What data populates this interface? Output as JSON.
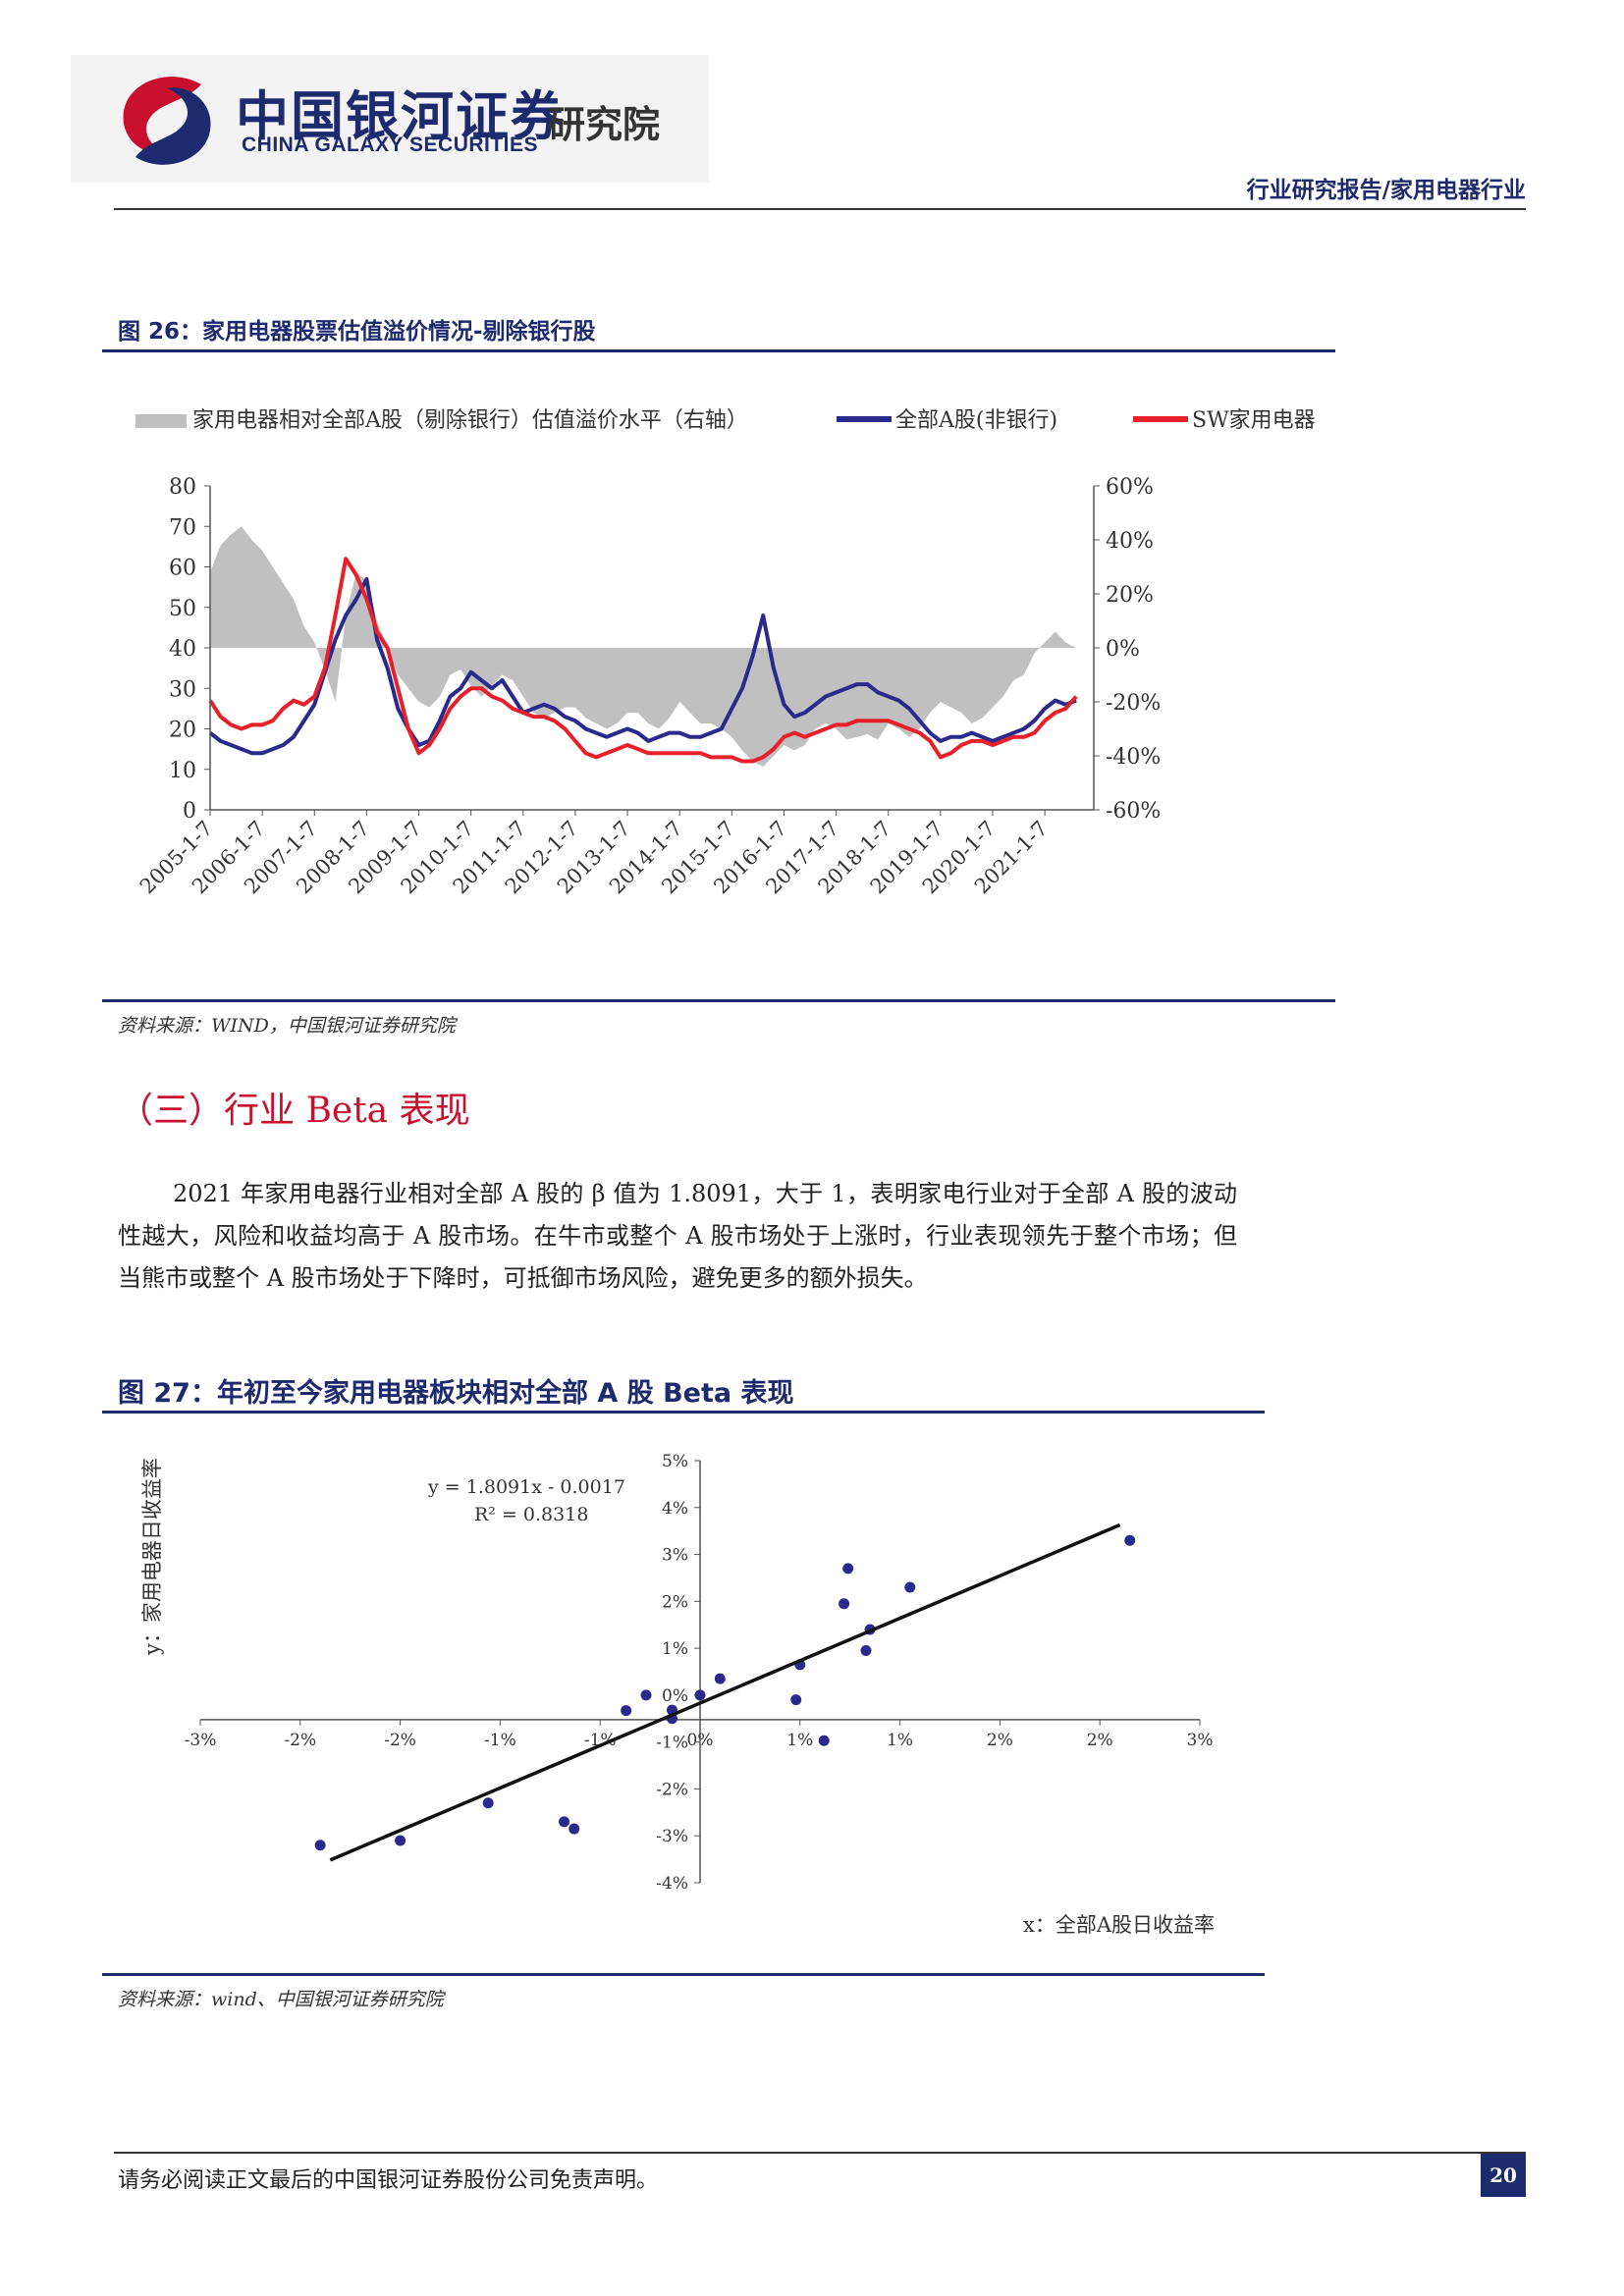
{
  "header": {
    "logo_cn": "中国银河证券",
    "logo_en": "CHINA GALAXY SECURITIES",
    "logo_institute": "研究院",
    "report_type": "行业研究报告/家用电器行业"
  },
  "figure26": {
    "title": "图 26：家用电器股票估值溢价情况-剔除银行股",
    "source": "资料来源：WIND，中国银河证券研究院"
  },
  "section": {
    "title": "（三）行业 Beta 表现",
    "paragraph": "2021 年家用电器行业相对全部 A 股的 β 值为 1.8091，大于 1，表明家电行业对于全部 A 股的波动性越大，风险和收益均高于 A 股市场。在牛市或整个 A 股市场处于上涨时，行业表现领先于整个市场；但当熊市或整个 A 股市场处于下降时，可抵御市场风险，避免更多的额外损失。"
  },
  "figure27": {
    "title": "图 27：年初至今家用电器板块相对全部 A 股 Beta 表现",
    "source": "资料来源：wind、中国银河证券研究院"
  },
  "footer": {
    "disclaimer": "请务必阅读正文最后的中国银河证券股份公司免责声明。",
    "page_number": "20"
  },
  "colors": {
    "navy": "#1e2a6e",
    "red": "#e8202a",
    "gray": "#c0c0c0",
    "section_red": "#c8102e"
  },
  "chart_data": [
    {
      "type": "line",
      "legend": [
        "家用电器相对全部A股（剔除银行）估值溢价水平（右轴）",
        "全部A股(非银行)",
        "SW家用电器"
      ],
      "legend_placement": "top",
      "left_ticks": [
        "0",
        "10",
        "20",
        "30",
        "40",
        "50",
        "60",
        "70",
        "80"
      ],
      "right_ticks": [
        "-60%",
        "-40%",
        "-20%",
        "0%",
        "20%",
        "40%",
        "60%"
      ],
      "ylim_left": [
        0,
        80
      ],
      "ylim_right": [
        -60,
        60
      ],
      "x_ticks": [
        "2005-1-7",
        "2006-1-7",
        "2007-1-7",
        "2008-1-7",
        "2009-1-7",
        "2010-1-7",
        "2011-1-7",
        "2012-1-7",
        "2013-1-7",
        "2014-1-7",
        "2015-1-7",
        "2016-1-7",
        "2017-1-7",
        "2018-1-7",
        "2019-1-7",
        "2020-1-7",
        "2021-1-7"
      ],
      "x": [
        2005.0,
        2005.2,
        2005.4,
        2005.6,
        2005.8,
        2006.0,
        2006.2,
        2006.4,
        2006.6,
        2006.8,
        2007.0,
        2007.2,
        2007.4,
        2007.6,
        2007.8,
        2008.0,
        2008.2,
        2008.4,
        2008.6,
        2008.8,
        2009.0,
        2009.2,
        2009.4,
        2009.6,
        2009.8,
        2010.0,
        2010.2,
        2010.4,
        2010.6,
        2010.8,
        2011.0,
        2011.2,
        2011.4,
        2011.6,
        2011.8,
        2012.0,
        2012.2,
        2012.4,
        2012.6,
        2012.8,
        2013.0,
        2013.2,
        2013.4,
        2013.6,
        2013.8,
        2014.0,
        2014.2,
        2014.4,
        2014.6,
        2014.8,
        2015.0,
        2015.2,
        2015.4,
        2015.6,
        2015.8,
        2016.0,
        2016.2,
        2016.4,
        2016.6,
        2016.8,
        2017.0,
        2017.2,
        2017.4,
        2017.6,
        2017.8,
        2018.0,
        2018.2,
        2018.4,
        2018.6,
        2018.8,
        2019.0,
        2019.2,
        2019.4,
        2019.6,
        2019.8,
        2020.0,
        2020.2,
        2020.4,
        2020.6,
        2020.8,
        2021.0,
        2021.2,
        2021.4,
        2021.6
      ],
      "series": [
        {
          "name": "家用电器相对全部A股（剔除银行）估值溢价水平（右轴）",
          "axis": "right",
          "style": "area",
          "values": [
            28,
            38,
            42,
            45,
            40,
            36,
            30,
            24,
            18,
            8,
            2,
            -8,
            -20,
            12,
            28,
            25,
            10,
            0,
            -10,
            -15,
            -20,
            -22,
            -18,
            -10,
            -8,
            -14,
            -18,
            -14,
            -10,
            -12,
            -18,
            -24,
            -26,
            -24,
            -22,
            -22,
            -26,
            -28,
            -30,
            -28,
            -24,
            -24,
            -28,
            -30,
            -26,
            -20,
            -24,
            -28,
            -28,
            -30,
            -33,
            -38,
            -42,
            -44,
            -40,
            -36,
            -38,
            -36,
            -30,
            -28,
            -30,
            -34,
            -33,
            -32,
            -34,
            -28,
            -30,
            -33,
            -30,
            -24,
            -20,
            -22,
            -24,
            -28,
            -26,
            -22,
            -18,
            -12,
            -10,
            -2,
            2,
            6,
            2,
            0
          ]
        },
        {
          "name": "全部A股(非银行)",
          "axis": "left",
          "style": "line",
          "values": [
            19,
            17,
            16,
            15,
            14,
            14,
            15,
            16,
            18,
            22,
            26,
            34,
            42,
            48,
            52,
            57,
            42,
            35,
            25,
            20,
            16,
            17,
            22,
            28,
            30,
            34,
            32,
            30,
            32,
            28,
            24,
            25,
            26,
            25,
            23,
            22,
            20,
            19,
            18,
            19,
            20,
            19,
            17,
            18,
            19,
            19,
            18,
            18,
            19,
            20,
            25,
            30,
            38,
            48,
            35,
            26,
            23,
            24,
            26,
            28,
            29,
            30,
            31,
            31,
            29,
            28,
            27,
            25,
            22,
            19,
            17,
            18,
            18,
            19,
            18,
            17,
            18,
            19,
            20,
            22,
            25,
            27,
            26,
            27
          ]
        },
        {
          "name": "SW家用电器",
          "axis": "left",
          "style": "line",
          "values": [
            27,
            23,
            21,
            20,
            21,
            21,
            22,
            25,
            27,
            26,
            28,
            35,
            48,
            62,
            58,
            52,
            44,
            40,
            30,
            20,
            14,
            16,
            20,
            25,
            28,
            30,
            30,
            28,
            27,
            25,
            24,
            23,
            23,
            22,
            20,
            17,
            14,
            13,
            14,
            15,
            16,
            15,
            14,
            14,
            14,
            14,
            14,
            14,
            13,
            13,
            13,
            12,
            12,
            13,
            15,
            18,
            19,
            18,
            19,
            20,
            21,
            21,
            22,
            22,
            22,
            22,
            21,
            20,
            19,
            17,
            13,
            14,
            16,
            17,
            17,
            16,
            17,
            18,
            18,
            19,
            22,
            24,
            25,
            28
          ]
        }
      ]
    },
    {
      "type": "scatter",
      "xlabel": "x：全部A股日收益率",
      "ylabel": "y：家用电器日收益率",
      "equation": "y = 1.8091x - 0.0017",
      "r_squared": "R² = 0.8318",
      "x_ticks": [
        "-3%",
        "-2%",
        "-2%",
        "-1%",
        "-1%",
        "0%",
        "1%",
        "1%",
        "2%",
        "2%",
        "3%"
      ],
      "y_ticks": [
        "5%",
        "4%",
        "3%",
        "2%",
        "1%",
        "0%",
        "-1%",
        "-2%",
        "-3%",
        "-4%"
      ],
      "xlim": [
        -2.5,
        2.5
      ],
      "ylim": [
        -4,
        5
      ],
      "points": [
        [
          -1.9,
          -3.2
        ],
        [
          -1.5,
          -3.1
        ],
        [
          -1.06,
          -2.3
        ],
        [
          -0.68,
          -2.7
        ],
        [
          -0.63,
          -2.85
        ],
        [
          -0.37,
          -0.33
        ],
        [
          -0.14,
          -0.32
        ],
        [
          -0.27,
          0.0
        ],
        [
          -0.14,
          -0.5
        ],
        [
          0.0,
          0.0
        ],
        [
          0.1,
          0.35
        ],
        [
          0.48,
          -0.1
        ],
        [
          0.5,
          0.65
        ],
        [
          0.62,
          -0.97
        ],
        [
          0.72,
          1.95
        ],
        [
          0.74,
          2.7
        ],
        [
          0.83,
          0.95
        ],
        [
          0.85,
          1.4
        ],
        [
          1.05,
          2.3
        ],
        [
          2.15,
          3.3
        ]
      ],
      "regression": {
        "slope": 1.8091,
        "intercept": -0.17,
        "x_range": [
          -1.85,
          2.1
        ]
      }
    }
  ]
}
